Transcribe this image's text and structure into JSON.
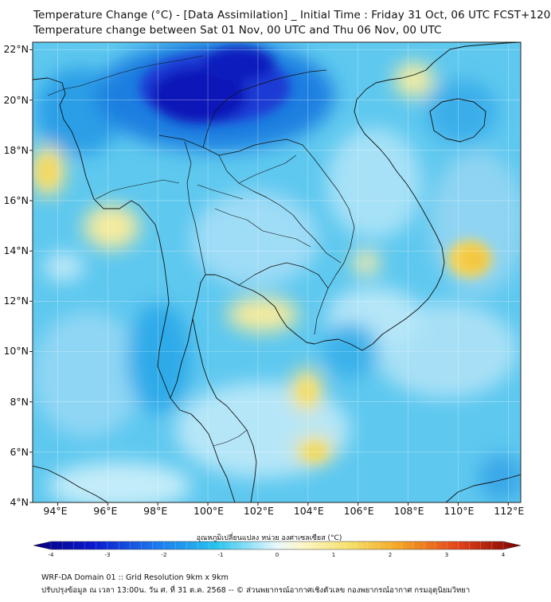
{
  "title": {
    "line1": "Temperature Change (°C) - [Data Assimilation] _ Initial Time : Friday 31 Oct, 06 UTC FCST+120",
    "line2": "Temperature change between Sat 01 Nov, 00 UTC and Thu 06 Nov, 00 UTC"
  },
  "map": {
    "lon_range": [
      93,
      112.5
    ],
    "lat_range": [
      4,
      22.3
    ],
    "lat_labels": [
      "22°N",
      "20°N",
      "18°N",
      "16°N",
      "14°N",
      "12°N",
      "10°N",
      "8°N",
      "6°N",
      "4°N"
    ],
    "lon_labels": [
      "94°E",
      "96°E",
      "98°E",
      "100°E",
      "102°E",
      "104°E",
      "106°E",
      "108°E",
      "110°E",
      "112°E"
    ],
    "grid": true,
    "colors": {
      "background_field": "#5ec8ef",
      "strong_cooling": "#0a14b4",
      "warm_spot": "#f2e27a",
      "coastline": "#111111"
    }
  },
  "colorbar": {
    "label": "อุณหภูมิเปลี่ยนแปลง หน่วย องศาเซลเซียส (°C)",
    "ticks": [
      "-4",
      "-3",
      "-2",
      "-1",
      "0",
      "1",
      "2",
      "3",
      "4"
    ],
    "range": [
      -4,
      4
    ]
  },
  "footer": {
    "line1": "WRF-DA Domain 01 :: Grid Resolution 9km x 9km",
    "line2": "ปรับปรุงข้อมูล ณ เวลา 13:00น. วัน ศ. ที่ 31 ต.ค. 2568 -- © ส่วนพยากรณ์อากาศเชิงตัวเลข กองพยากรณ์อากาศ กรมอุตุนิยมวิทยา"
  }
}
